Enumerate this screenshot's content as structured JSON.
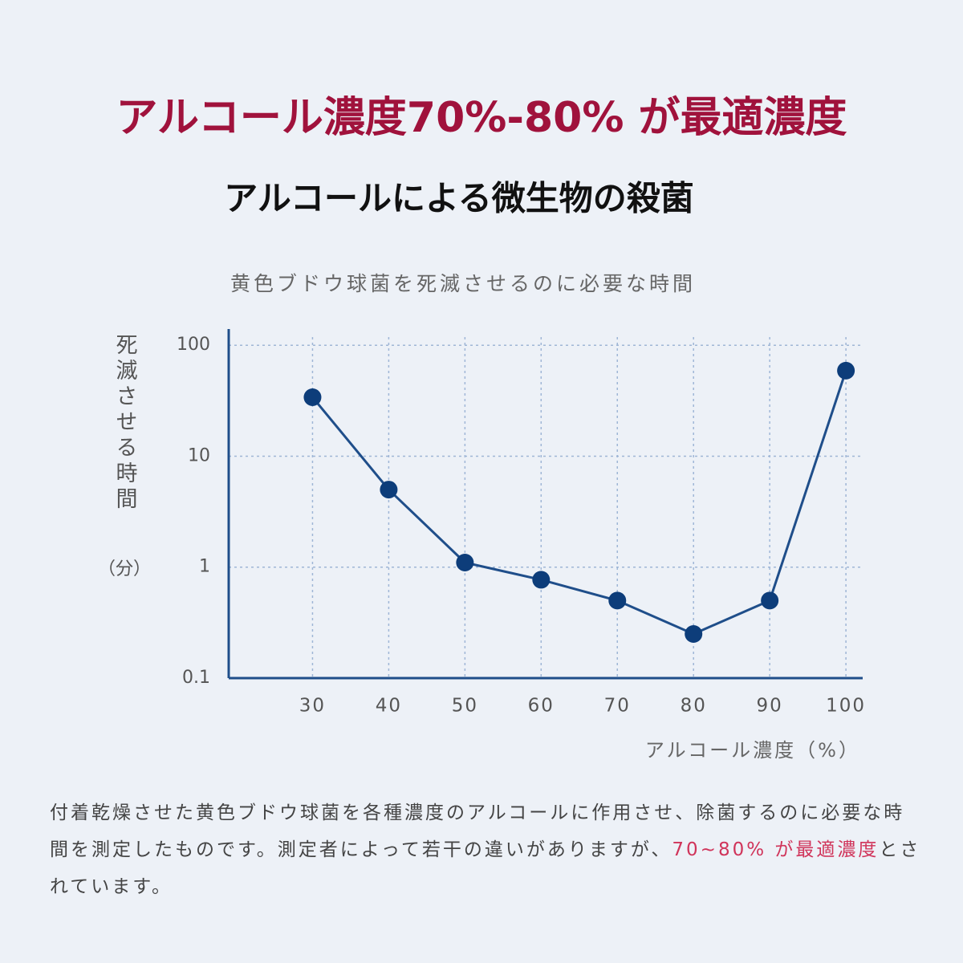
{
  "chart_data": {
    "type": "line",
    "title": "アルコール濃度70%-80% が最適濃度",
    "subtitle": "アルコールによる微生物の殺菌",
    "chart_title": "黄色ブドウ球菌を死滅させるのに必要な時間",
    "y_label": "死滅させる時間",
    "y_label_unit": "（分）",
    "x_label": "アルコール濃度（%）",
    "x": [
      30,
      40,
      50,
      60,
      70,
      80,
      90,
      100
    ],
    "values": [
      34,
      5,
      1.1,
      0.77,
      0.5,
      0.25,
      0.5,
      59
    ],
    "color": "#1f4e8a",
    "marker_color": "#0d3d7a",
    "xlim": [
      19,
      102.2
    ],
    "xticks": [
      30,
      40,
      50,
      60,
      70,
      80,
      90,
      100
    ],
    "ylim": [
      0.1,
      140
    ],
    "yticks": [
      0.1,
      1,
      10,
      100
    ],
    "log_y": true,
    "grid": true
  },
  "caption": [
    "付着乾燥させた黄色ブドウ球菌を各種濃度のアルコールに作用させ、除菌するのに必要な時間を測定したものです。測定者によって若干の違いがありますが、",
    "70~80% が最適濃度",
    "とされています。"
  ]
}
